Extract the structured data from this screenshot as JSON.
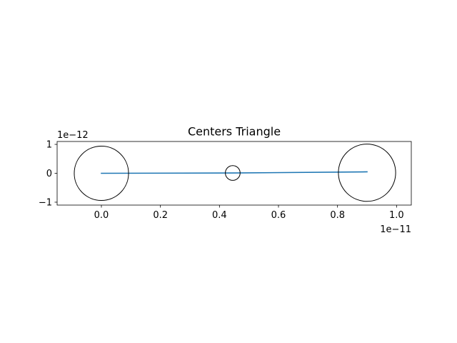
{
  "chart_data": {
    "type": "line",
    "title": "Centers Triangle",
    "xlabel": "",
    "ylabel": "",
    "x_offset_text": "1e−11",
    "y_offset_text": "1e−12",
    "xlim": [
      -0.15,
      1.05
    ],
    "ylim": [
      -1.1,
      1.1
    ],
    "grid": false,
    "x_ticks": [
      {
        "value": 0.0,
        "label": "0.0"
      },
      {
        "value": 0.2,
        "label": "0.2"
      },
      {
        "value": 0.4,
        "label": "0.4"
      },
      {
        "value": 0.6,
        "label": "0.6"
      },
      {
        "value": 0.8,
        "label": "0.8"
      },
      {
        "value": 1.0,
        "label": "1.0"
      }
    ],
    "y_ticks": [
      {
        "value": 1,
        "label": "1"
      },
      {
        "value": 0,
        "label": "0"
      },
      {
        "value": -1,
        "label": "−1"
      }
    ],
    "series": [
      {
        "color": "#1f77b4",
        "x": [
          0.0,
          0.445,
          0.9
        ],
        "y": [
          0.0,
          0.01,
          0.05
        ]
      }
    ],
    "circles": [
      {
        "cx": 0.0,
        "cy": 0.0,
        "r": 0.92,
        "color": "#000000"
      },
      {
        "cx": 0.445,
        "cy": 0.01,
        "r": 0.25,
        "color": "#000000"
      },
      {
        "cx": 0.9,
        "cy": 0.02,
        "r": 0.97,
        "color": "#000000"
      }
    ]
  }
}
